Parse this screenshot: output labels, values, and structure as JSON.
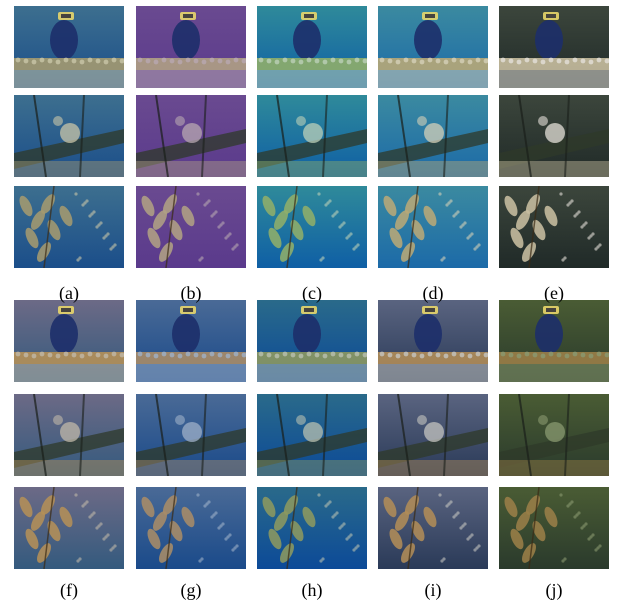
{
  "figure": {
    "labels": [
      "(a)",
      "(b)",
      "(c)",
      "(d)",
      "(e)",
      "(f)",
      "(g)",
      "(h)",
      "(i)",
      "(j)"
    ],
    "scenes": [
      "diver",
      "pipe",
      "kelp"
    ],
    "palettes": [
      [
        "#1b4e8a",
        "#3d6f8f",
        "#a49a70",
        "#c9c6a8"
      ],
      [
        "#5a3a8c",
        "#6a4a90",
        "#b0a084",
        "#b8a8b0"
      ],
      [
        "#0f5fa5",
        "#2f8a9a",
        "#8fae6a",
        "#bcd0b8"
      ],
      [
        "#1c6aa8",
        "#3b8aa0",
        "#b8a878",
        "#d4d0b8"
      ],
      [
        "#202a28",
        "#3c463c",
        "#c8bea0",
        "#e4e0d8"
      ],
      [
        "#345a7e",
        "#6c6a86",
        "#b49058",
        "#c0b8a8"
      ],
      [
        "#1a4a8a",
        "#4a6a96",
        "#a88c68",
        "#9fb0c8"
      ],
      [
        "#0c4a98",
        "#2a6a8a",
        "#8c9860",
        "#b8c0b0"
      ],
      [
        "#2a3a58",
        "#5a6480",
        "#b08c58",
        "#c4c4c0"
      ],
      [
        "#2a3a2c",
        "#4a5c34",
        "#9a7e48",
        "#8a9a70"
      ]
    ]
  }
}
